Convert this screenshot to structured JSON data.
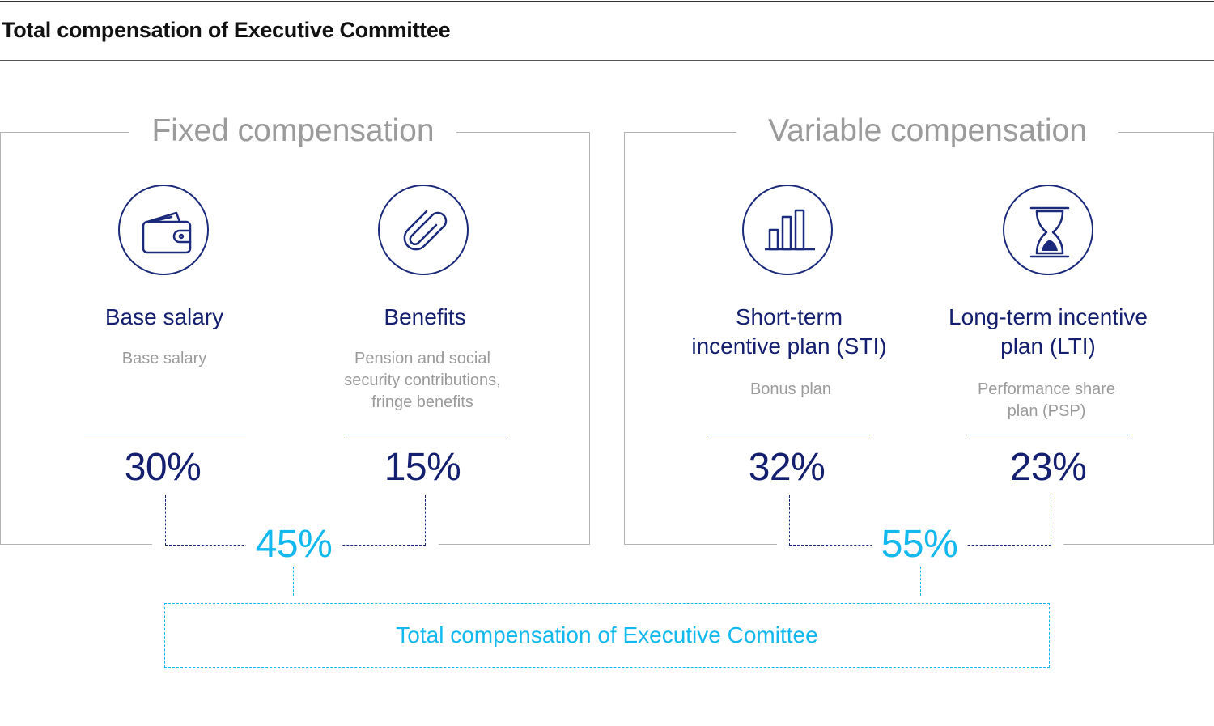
{
  "title": "Total compensation of Executive Committee",
  "groups": [
    {
      "title": "Fixed compensation",
      "total": "45%",
      "items": [
        {
          "title": "Base salary",
          "description": "Base salary",
          "percent": "30%",
          "icon": "wallet-icon"
        },
        {
          "title": "Benefits",
          "description": "Pension and social security contributions, fringe benefits",
          "percent": "15%",
          "icon": "paperclip-icon"
        }
      ]
    },
    {
      "title": "Variable compensation",
      "total": "55%",
      "items": [
        {
          "title": "Short-term incentive plan (STI)",
          "description": "Bonus plan",
          "percent": "32%",
          "icon": "bar-chart-icon"
        },
        {
          "title": "Long-term incentive plan (LTI)",
          "description": "Performance share plan (PSP)",
          "percent": "23%",
          "icon": "hourglass-icon"
        }
      ]
    }
  ],
  "total_label": "Total compensation of Executive Comittee",
  "colors": {
    "navy": "#1b2a7a",
    "cyan": "#12b8ee",
    "gray": "#9b9b9b",
    "border": "#b4b4b4"
  }
}
